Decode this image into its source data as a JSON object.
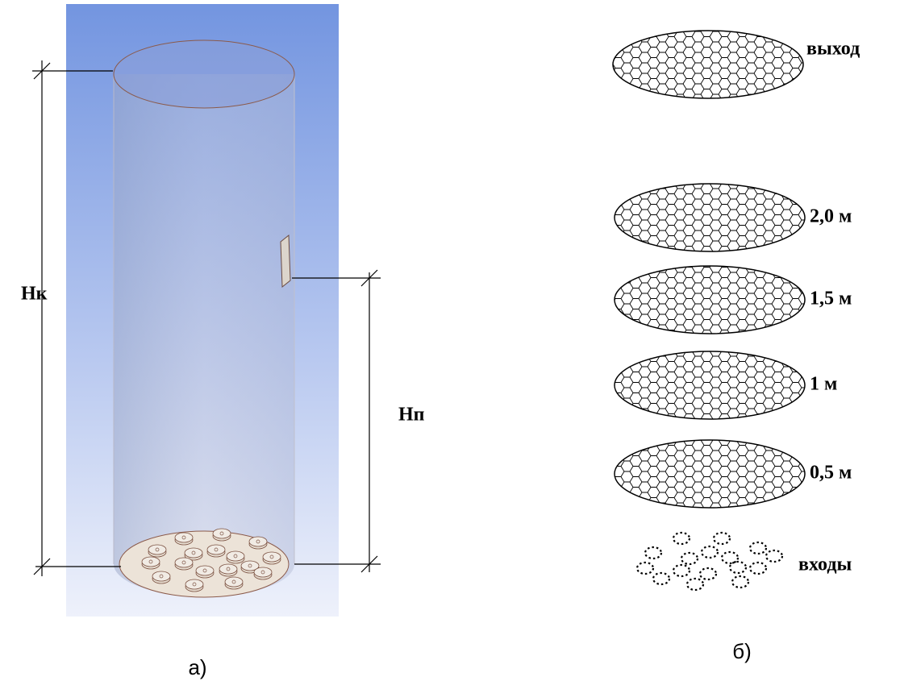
{
  "left": {
    "height_total": "Нк",
    "height_sensor": "Нп",
    "caption": "а)"
  },
  "right": {
    "outlet": "выход",
    "sections": [
      "2,0 м",
      "1,5 м",
      "1 м",
      "0,5 м"
    ],
    "inlets": "входы",
    "caption": "б)"
  }
}
